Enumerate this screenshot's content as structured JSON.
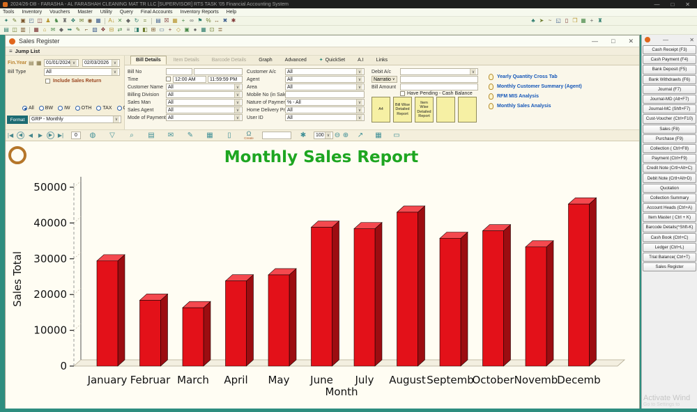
{
  "app": {
    "title": "2024/26-DB - FARASHA - AL FARASHAH CLEANING MAT TR LLC [SUPERVISOR]    RTS TASK '05 Financial Accounting System",
    "controls": {
      "min": "—",
      "max": "□",
      "close": "✕"
    }
  },
  "menubar": {
    "items": [
      "Tools",
      "Inventory",
      "Vouchers",
      "Master",
      "Utility",
      "Query",
      "Final Accounts",
      "Inventory Reports",
      "Help"
    ]
  },
  "toolbar1": {
    "icons": [
      {
        "n": "new",
        "g": "✦"
      },
      {
        "n": "edit",
        "g": "✎"
      },
      {
        "n": "save",
        "g": "▣"
      },
      {
        "n": "open-folder",
        "g": "◰"
      },
      {
        "n": "copy",
        "g": "◫"
      },
      {
        "n": "user",
        "g": "♟"
      },
      {
        "n": "user-add",
        "g": "♞"
      },
      {
        "n": "group",
        "g": "♜"
      },
      {
        "n": "accounts",
        "g": "❖"
      },
      {
        "n": "mail",
        "g": "✉"
      },
      {
        "n": "coin",
        "g": "◉"
      },
      {
        "n": "package",
        "g": "▦"
      },
      {
        "sep": true
      },
      {
        "n": "sort-az",
        "g": "A↓"
      },
      {
        "n": "delete",
        "g": "✕"
      },
      {
        "n": "diamond",
        "g": "◆"
      },
      {
        "n": "refresh",
        "g": "↻"
      },
      {
        "n": "equals",
        "g": "="
      },
      {
        "sep": true
      },
      {
        "n": "doc-blue",
        "g": "▤"
      },
      {
        "n": "excel",
        "g": "☒"
      },
      {
        "n": "grid-green",
        "g": "▦"
      },
      {
        "n": "add",
        "g": "+"
      },
      {
        "n": "binoculars",
        "g": "∞"
      },
      {
        "n": "flag",
        "g": "⚑"
      },
      {
        "n": "percent",
        "g": "%"
      },
      {
        "n": "swap",
        "g": "↔"
      },
      {
        "n": "close-red",
        "g": "✖"
      },
      {
        "n": "tools",
        "g": "✱"
      }
    ],
    "right_icons": [
      {
        "n": "leaf",
        "g": "♣"
      },
      {
        "n": "send",
        "g": "➤"
      },
      {
        "n": "wave",
        "g": "~"
      },
      {
        "n": "copy-page",
        "g": "◱"
      },
      {
        "n": "note",
        "g": "▯"
      },
      {
        "n": "cards",
        "g": "❒"
      },
      {
        "n": "table",
        "g": "▦"
      },
      {
        "n": "plus-grid",
        "g": "+"
      },
      {
        "n": "tower",
        "g": "♜"
      }
    ]
  },
  "toolbar2": {
    "icons": [
      {
        "n": "doc1",
        "g": "▤"
      },
      {
        "n": "doc2",
        "g": "◫"
      },
      {
        "n": "doc3",
        "g": "▥"
      },
      {
        "sep": true
      },
      {
        "n": "grid",
        "g": "▦"
      },
      {
        "n": "home",
        "g": "⌂"
      },
      {
        "n": "envelope",
        "g": "✉"
      },
      {
        "n": "diamond",
        "g": "◆"
      },
      {
        "n": "arrow",
        "g": "➥"
      },
      {
        "n": "pen",
        "g": "✎"
      },
      {
        "n": "corner",
        "g": "⌐"
      },
      {
        "n": "shade",
        "g": "▧"
      },
      {
        "n": "apps",
        "g": "❖"
      },
      {
        "n": "minus-box",
        "g": "⊟"
      },
      {
        "n": "swap",
        "g": "⇄"
      },
      {
        "n": "list",
        "g": "≡"
      },
      {
        "n": "half-right",
        "g": "◨"
      },
      {
        "n": "half-left",
        "g": "◧"
      },
      {
        "n": "plus-box",
        "g": "⊞"
      },
      {
        "n": "bar",
        "g": "▭"
      },
      {
        "n": "plus",
        "g": "+"
      },
      {
        "n": "gem",
        "g": "◇"
      },
      {
        "n": "box",
        "g": "▣"
      },
      {
        "n": "dot",
        "g": "●"
      },
      {
        "n": "table",
        "g": "▦"
      },
      {
        "n": "dot-box",
        "g": "⊡"
      },
      {
        "n": "lines",
        "g": "≣"
      }
    ]
  },
  "sales_register": {
    "title": "Sales Register",
    "controls": {
      "min": "—",
      "max": "□",
      "close": "✕"
    },
    "jump_list_label": "Jump List",
    "filter": {
      "fin_year_label": "Fin.Year",
      "date_from": "01/01/2024",
      "date_to": "02/03/2026",
      "bill_type_label": "Bill Type",
      "bill_type_value": "All",
      "include_label": "Include Sales Return",
      "radios": [
        {
          "label": "All",
          "selected": true
        },
        {
          "label": "BW",
          "selected": false
        },
        {
          "label": "IW",
          "selected": false
        },
        {
          "label": "OTH",
          "selected": false
        },
        {
          "label": "TAX",
          "selected": false
        },
        {
          "label": "GRP",
          "selected": false
        }
      ],
      "format_label": "Format",
      "format_value": "GRP - Monthly"
    },
    "tabs": [
      {
        "label": "Bill Details",
        "state": "active"
      },
      {
        "label": "Item Details",
        "state": "disabled"
      },
      {
        "label": "Barcode Details",
        "state": "disabled"
      },
      {
        "label": "Graph",
        "state": "normal"
      },
      {
        "label": "Advanced",
        "state": "normal"
      },
      {
        "label": "QuickSet",
        "state": "accent",
        "icon": "✦"
      },
      {
        "label": "A.I",
        "state": "normal"
      },
      {
        "label": "Links",
        "state": "normal"
      }
    ],
    "form": {
      "left": [
        {
          "label": "Bill No",
          "type": "billno",
          "value": ""
        },
        {
          "label": "Time",
          "type": "time",
          "from": "12:00 AM",
          "to": "11:59:59 PM"
        },
        {
          "label": "Customer Name",
          "type": "select",
          "value": "All"
        },
        {
          "label": "Billing Division",
          "type": "select",
          "value": "All"
        },
        {
          "label": "Sales Man",
          "type": "select",
          "value": "All"
        },
        {
          "label": "Sales Agent",
          "type": "select",
          "value": "All"
        },
        {
          "label": "Mode of Payment",
          "type": "select",
          "value": "All"
        }
      ],
      "middle": [
        {
          "label": "Customer A/c",
          "type": "select",
          "value": "All"
        },
        {
          "label": "Agent",
          "type": "select",
          "value": "All"
        },
        {
          "label": "Area",
          "type": "select",
          "value": "All"
        },
        {
          "label": "Mobile No (in Sales)",
          "type": "input",
          "value": ""
        },
        {
          "label": "Nature of Payment",
          "type": "select",
          "value": "% - All"
        },
        {
          "label": "Home Delivery Prcs",
          "type": "select",
          "value": "All"
        },
        {
          "label": "User ID",
          "type": "select",
          "value": "All"
        }
      ],
      "right": [
        {
          "label": "Debit A/c",
          "type": "select",
          "value": ""
        },
        {
          "label": "Narratio",
          "type": "narratio",
          "value": ""
        },
        {
          "label": "Bill Amount",
          "type": "input",
          "value": ""
        }
      ],
      "pending_label": "Have Pending - Cash Balance",
      "report_buttons": [
        "A4",
        "Bill Wise Detailed Report",
        "Item Wise Detailed Report",
        "",
        ""
      ],
      "links": [
        "Yearly Quantity Cross Tab",
        "Monthly Customer Summary (Agent)",
        "RFM MIS Analysis",
        "Monthly Sales Analysis"
      ]
    },
    "nav": {
      "arrows": [
        {
          "n": "first",
          "g": "|◀"
        },
        {
          "n": "prev-fast",
          "g": "◀",
          "circ": true
        },
        {
          "n": "prev",
          "g": "◀"
        },
        {
          "n": "next",
          "g": "▶"
        },
        {
          "n": "next-fast",
          "g": "▶",
          "circ": true
        },
        {
          "n": "last",
          "g": "▶|"
        }
      ],
      "record_value": "0",
      "icons1": [
        {
          "n": "sphere",
          "g": "◍"
        },
        {
          "n": "filter",
          "g": "▽"
        },
        {
          "n": "search",
          "g": "⌕"
        },
        {
          "n": "print",
          "g": "▤"
        },
        {
          "n": "mail",
          "g": "✉"
        },
        {
          "n": "compose",
          "g": "✎"
        },
        {
          "n": "grid",
          "g": "▦"
        },
        {
          "n": "page",
          "g": "▯"
        }
      ],
      "create_glyph": "Ω",
      "create_label": "Create",
      "page_value": "",
      "gear_glyph": "✱",
      "zoom_value": "100",
      "zoom_out": "⊖",
      "zoom_in": "⊕",
      "icons2": [
        {
          "n": "export",
          "g": "↗"
        },
        {
          "n": "table-menu",
          "g": "▦"
        },
        {
          "n": "bar",
          "g": "▭"
        }
      ]
    }
  },
  "sidebar": {
    "buttons": [
      "Cash Receipt (F3)",
      "Cash Payment (F4)",
      "Bank Deposit (F5)",
      "Bank Withdrawls (F6)",
      "Journal (F7)",
      "Journal-MD (Alt+F7)",
      "Journal-MC (Shft+F7)",
      "Cust-Voucher (Ctrl+F10)",
      "Sales (F8)",
      "Purchase (F9)",
      "Collection ( Ctrl+F8)",
      "Payment (Ctrl+F9)",
      "Credit Note (Crtl+Alt+C)",
      "Debit Note (Crtl+Alt+D)",
      "Quotation",
      "Collection Summary",
      "Account Heads (Ctrl+A)",
      "Item Master ( Ctrl + K)",
      "Barcode Details(^Shft-K)",
      "Cash Book (Ctrl+C)",
      "Ledger (Ctrl+L)",
      "Trial Balance( Ctrl+T)",
      "Sales Register"
    ],
    "controls": {
      "min": "—",
      "close": "✕"
    }
  },
  "watermark": {
    "line1": "Activate Wind",
    "line2": "Go to Settings to"
  },
  "chart_data": {
    "type": "bar",
    "style": "3d",
    "title": "Monthly Sales Report",
    "categories": [
      "January",
      "Februar",
      "March",
      "April",
      "May",
      "June",
      "July",
      "August",
      "Septemb",
      "October",
      "Novemb",
      "Decemb"
    ],
    "values": [
      29400,
      18400,
      16300,
      23800,
      25500,
      38800,
      38400,
      43000,
      35700,
      37800,
      33300,
      45300
    ],
    "xlabel": "Month",
    "ylabel": "Sales Total",
    "ylim": [
      0,
      50000
    ],
    "ytick_step": 10000,
    "grid": false,
    "legend": "none",
    "title_color": "#1ea621",
    "bar_color_front": "#e31119",
    "bar_color_top": "#f4494f",
    "bar_color_side": "#9c0d11"
  }
}
